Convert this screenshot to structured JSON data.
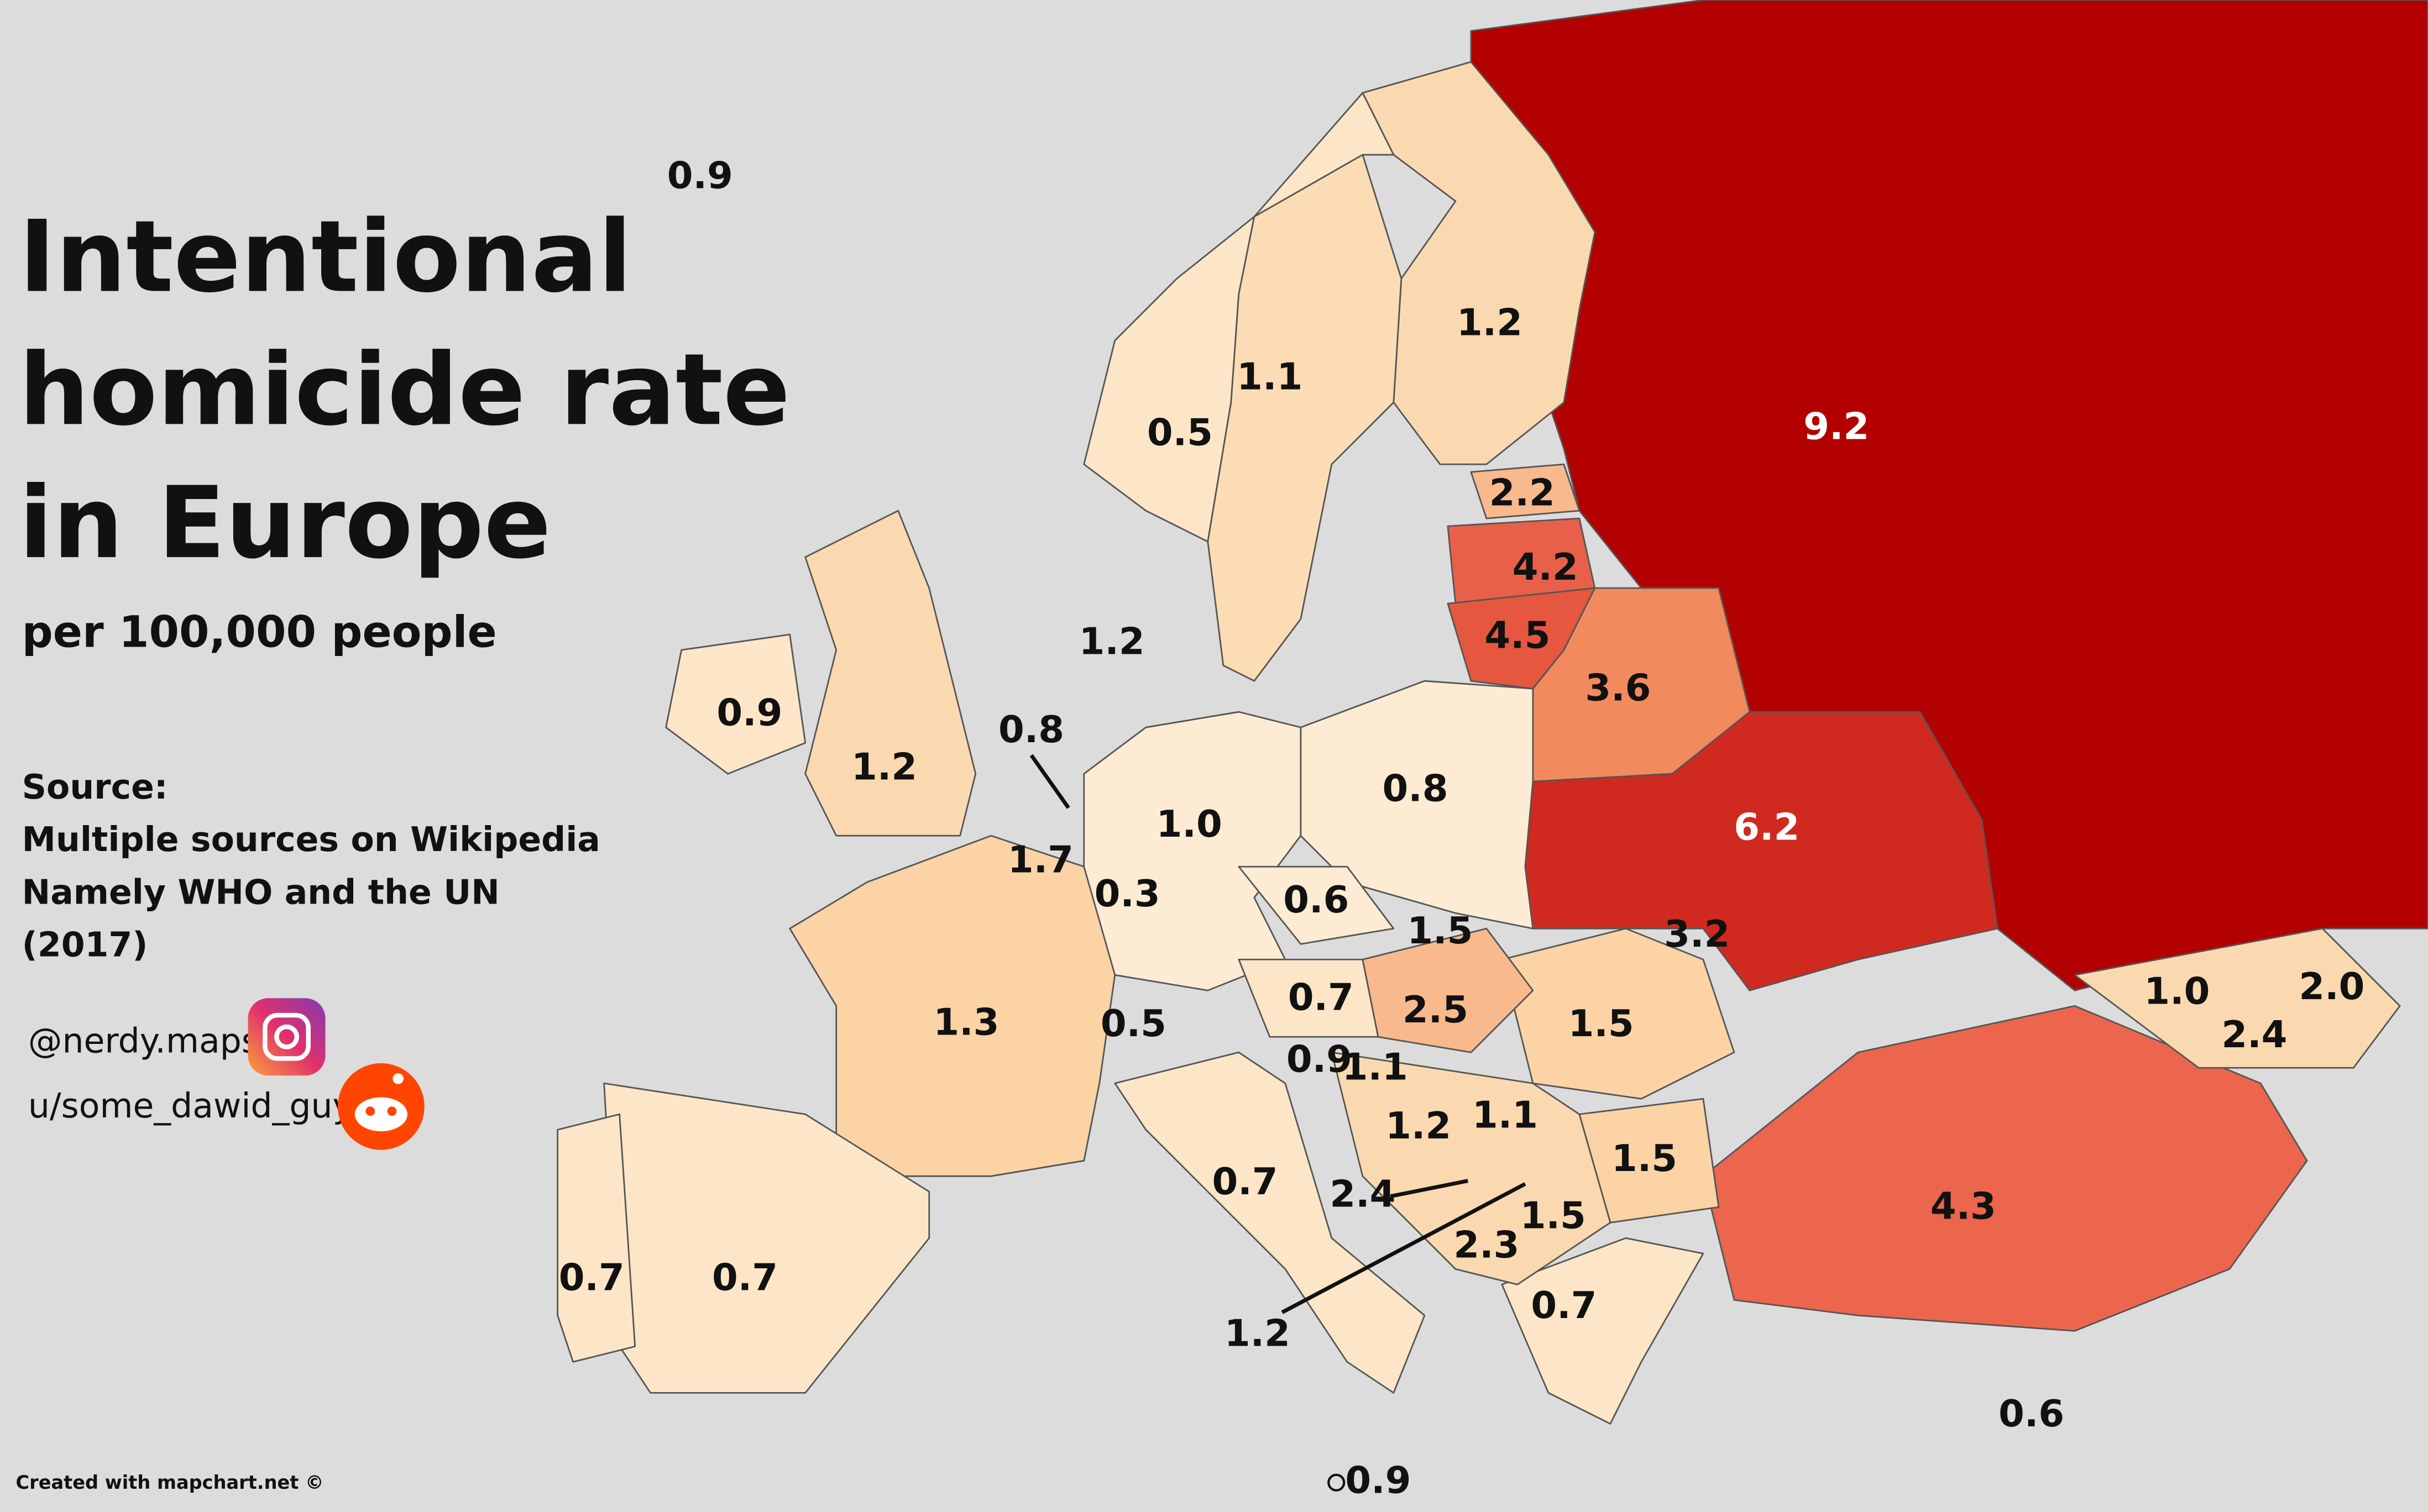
{
  "header": {
    "title": [
      "Intentional",
      "homicide rate",
      "in Europe"
    ],
    "subtitle": "per 100,000 people"
  },
  "source": [
    "Source:",
    "Multiple sources on Wikipedia",
    "Namely WHO and the UN",
    "(2017)"
  ],
  "social": [
    "@nerdy.maps",
    "u/some_dawid_guy"
  ],
  "footer": {
    "credit": "Created with mapchart.net ©"
  },
  "labels": [
    "0.9",
    "1.2",
    "1.1",
    "0.5",
    "9.2",
    "2.2",
    "4.2",
    "4.5",
    "1.2",
    "3.6",
    "0.9",
    "1.2",
    "0.8",
    "1.0",
    "0.8",
    "6.2",
    "1.7",
    "0.3",
    "0.6",
    "1.5",
    "3.2",
    "1.3",
    "0.5",
    "0.7",
    "2.5",
    "1.5",
    "1.0",
    "2.0",
    "2.4",
    "0.9",
    "1.1",
    "1.2",
    "1.1",
    "1.5",
    "0.7",
    "2.4",
    "1.5",
    "2.3",
    "4.3",
    "0.7",
    "0.7",
    "0.7",
    "1.2",
    "0.6",
    "0.9"
  ]
}
